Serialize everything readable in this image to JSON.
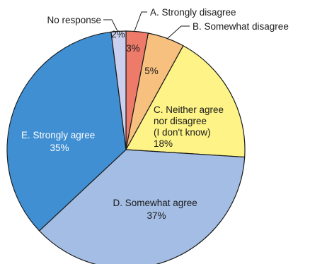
{
  "chart_data": {
    "type": "pie",
    "title": "",
    "slices": [
      {
        "name": "A. Strongly disagree",
        "value": 3,
        "label": "3%",
        "color": "#ee7a6a"
      },
      {
        "name": "B. Somewhat disagree",
        "value": 5,
        "label": "5%",
        "color": "#f7c07f"
      },
      {
        "name": "C. Neither agree nor disagree (I don't know)",
        "lines": [
          "C. Neither agree",
          "nor disagree",
          "(I don't know)",
          "18%"
        ],
        "value": 18,
        "color": "#fdf386"
      },
      {
        "name": "D. Somewhat agree",
        "lines": [
          "D. Somewhat agree",
          "37%"
        ],
        "value": 37,
        "color": "#a4bde4"
      },
      {
        "name": "E. Strongly agree",
        "lines": [
          "E. Strongly agree",
          "35%"
        ],
        "value": 35,
        "color": "#3f8fd2"
      },
      {
        "name": "No response",
        "value": 2,
        "label": "2%",
        "color": "#ccd0ee"
      }
    ]
  }
}
